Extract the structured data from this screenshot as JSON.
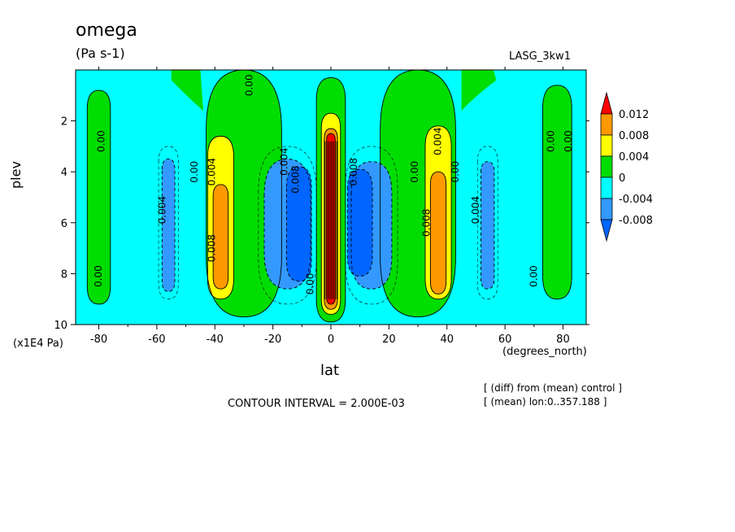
{
  "header": {
    "title": "omega",
    "units": "(Pa s-1)",
    "dataset": "LASG_3kw1"
  },
  "axes": {
    "ylabel": "plev",
    "yscale_note": "(x1E4 Pa)",
    "xlabel": "lat",
    "xunits": "(degrees_north)"
  },
  "footer": {
    "contour_interval": "CONTOUR INTERVAL = 2.000E-03",
    "note_line1": "[ (diff) from (mean) control ]",
    "note_line2": "[ (mean) lon:0..357.188 ]"
  },
  "colors": {
    "background": "#00ffff",
    "red": "#ff0000",
    "orange": "#ff9900",
    "yellow": "#ffff00",
    "green": "#00dd00",
    "cyan": "#00ffff",
    "lightblue": "#3399ff",
    "blue": "#0066ff"
  },
  "chart_data": {
    "type": "heatmap",
    "title": "omega",
    "xlabel": "lat",
    "ylabel": "plev",
    "xlim": [
      -88,
      88
    ],
    "ylim": [
      10,
      0
    ],
    "x_ticks": [
      -80,
      -60,
      -40,
      -20,
      0,
      20,
      40,
      60,
      80
    ],
    "x_tick_labels": [
      "-80",
      "-60",
      "-40",
      "-20",
      "0",
      "20",
      "40",
      "60",
      "80"
    ],
    "y_ticks": [
      2,
      4,
      6,
      8,
      10
    ],
    "y_tick_labels": [
      "2",
      "4",
      "6",
      "8",
      "10"
    ],
    "contour_interval": 0.002,
    "legend": {
      "placement": "right",
      "levels": [
        "0.012",
        "0.008",
        "0.004",
        "0",
        "-0.004",
        "-0.008"
      ],
      "colors": [
        "#ff0000",
        "#ff9900",
        "#ffff00",
        "#00dd00",
        "#00ffff",
        "#3399ff",
        "#0066ff"
      ]
    },
    "features": [
      {
        "name": "equatorial-max",
        "lat": 0,
        "plev": 5.8,
        "value": 0.012
      },
      {
        "name": "south-sub-max",
        "lat": -38,
        "plev": 6.5,
        "value": 0.008
      },
      {
        "name": "north-sub-max",
        "lat": 37,
        "plev": 6.5,
        "value": 0.008
      },
      {
        "name": "south-trough",
        "lat": -15,
        "plev": 6.0,
        "value": -0.008
      },
      {
        "name": "north-trough",
        "lat": 13,
        "plev": 6.0,
        "value": -0.008
      },
      {
        "name": "south-min",
        "lat": -56,
        "plev": 6.0,
        "value": -0.004
      },
      {
        "name": "north-min",
        "lat": 54,
        "plev": 6.0,
        "value": -0.004
      }
    ],
    "contour_labels": [
      {
        "text": "0.00",
        "lat": -78,
        "plev": 2.8
      },
      {
        "text": "0.00",
        "lat": -79,
        "plev": 8.1
      },
      {
        "text": "0.004",
        "lat": -57,
        "plev": 5.5
      },
      {
        "text": "0.00",
        "lat": -46,
        "plev": 4.0
      },
      {
        "text": "0.004",
        "lat": -40,
        "plev": 4.0
      },
      {
        "text": "0.008",
        "lat": -40,
        "plev": 7.0
      },
      {
        "text": "0.00",
        "lat": -27,
        "plev": 0.6
      },
      {
        "text": "0.004",
        "lat": -15,
        "plev": 3.6
      },
      {
        "text": "0.008",
        "lat": -11,
        "plev": 4.3
      },
      {
        "text": "0.00",
        "lat": -6,
        "plev": 8.4
      },
      {
        "text": "0.008",
        "lat": 9,
        "plev": 4.0
      },
      {
        "text": "0.00",
        "lat": 30,
        "plev": 4.0
      },
      {
        "text": "0.004",
        "lat": 38,
        "plev": 2.8
      },
      {
        "text": "0.00",
        "lat": 44,
        "plev": 4.0
      },
      {
        "text": "0.008",
        "lat": 34,
        "plev": 6.0
      },
      {
        "text": "0.004",
        "lat": 51,
        "plev": 5.5
      },
      {
        "text": "0.00",
        "lat": 71,
        "plev": 8.1
      },
      {
        "text": "0.00",
        "lat": 77,
        "plev": 2.8
      },
      {
        "text": "0.00",
        "lat": 83,
        "plev": 2.8
      }
    ]
  }
}
